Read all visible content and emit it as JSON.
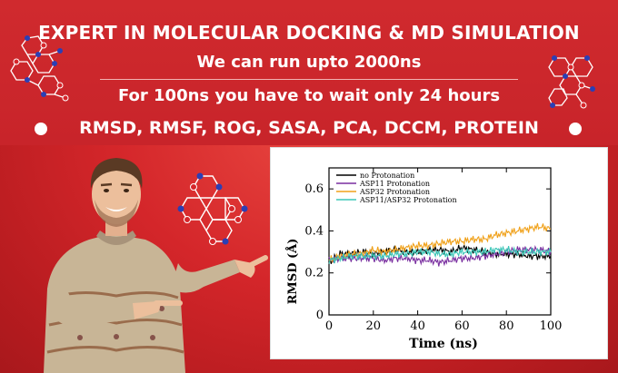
{
  "banner": {
    "headline": "EXPERT IN MOLECULAR DOCKING & MD SIMULATION",
    "subheadline": "We can run upto 2000ns",
    "timing_note": "For 100ns you have to wait only 24 hours",
    "analyses": "RMSD, RMSF, ROG, SASA, PCA, DCCM, PROTEIN"
  },
  "colors": {
    "background": "#c8242a",
    "text": "#ffffff",
    "molecule_bond": "#ffffff",
    "molecule_atom_blue": "#2b3fb5",
    "molecule_atom_red": "#d6262b"
  },
  "chart_data": {
    "type": "line",
    "xlabel": "Time (ns)",
    "ylabel": "RMSD (Å)",
    "xlim": [
      0,
      100
    ],
    "ylim": [
      0,
      0.7
    ],
    "x_ticks": [
      0,
      20,
      40,
      60,
      80,
      100
    ],
    "y_ticks": [
      0,
      0.2,
      0.4,
      0.6
    ],
    "y_tick_labels": [
      "0",
      "0.2",
      "0.4",
      "0.6"
    ],
    "legend_position": "top-left",
    "grid": false,
    "series": [
      {
        "name": "no Protonation",
        "color": "#000000",
        "x": [
          0,
          5,
          10,
          15,
          20,
          25,
          30,
          35,
          40,
          45,
          50,
          55,
          60,
          65,
          70,
          75,
          80,
          85,
          90,
          95,
          100
        ],
        "y": [
          0.25,
          0.29,
          0.29,
          0.3,
          0.29,
          0.3,
          0.31,
          0.3,
          0.3,
          0.31,
          0.31,
          0.3,
          0.32,
          0.31,
          0.3,
          0.29,
          0.29,
          0.29,
          0.28,
          0.28,
          0.28
        ]
      },
      {
        "name": "ASP11 Protonation",
        "color": "#7a2fa0",
        "x": [
          0,
          5,
          10,
          15,
          20,
          25,
          30,
          35,
          40,
          45,
          50,
          55,
          60,
          65,
          70,
          75,
          80,
          85,
          90,
          95,
          100
        ],
        "y": [
          0.26,
          0.27,
          0.27,
          0.27,
          0.27,
          0.26,
          0.27,
          0.27,
          0.26,
          0.26,
          0.25,
          0.26,
          0.27,
          0.27,
          0.28,
          0.29,
          0.3,
          0.31,
          0.31,
          0.31,
          0.3
        ]
      },
      {
        "name": "ASP32 Protonation",
        "color": "#f0a11a",
        "x": [
          0,
          5,
          10,
          15,
          20,
          25,
          30,
          35,
          40,
          45,
          50,
          55,
          60,
          65,
          70,
          75,
          80,
          85,
          90,
          95,
          100
        ],
        "y": [
          0.26,
          0.28,
          0.29,
          0.29,
          0.31,
          0.3,
          0.31,
          0.32,
          0.33,
          0.33,
          0.34,
          0.35,
          0.35,
          0.36,
          0.36,
          0.38,
          0.39,
          0.4,
          0.41,
          0.42,
          0.41
        ]
      },
      {
        "name": "ASP11/ASP32 Protonation",
        "color": "#3cc7b8",
        "x": [
          0,
          5,
          10,
          15,
          20,
          25,
          30,
          35,
          40,
          45,
          50,
          55,
          60,
          65,
          70,
          75,
          80,
          85,
          90,
          95,
          100
        ],
        "y": [
          0.26,
          0.27,
          0.28,
          0.28,
          0.28,
          0.28,
          0.29,
          0.29,
          0.3,
          0.3,
          0.29,
          0.29,
          0.3,
          0.3,
          0.3,
          0.31,
          0.31,
          0.3,
          0.3,
          0.3,
          0.3
        ]
      }
    ]
  }
}
